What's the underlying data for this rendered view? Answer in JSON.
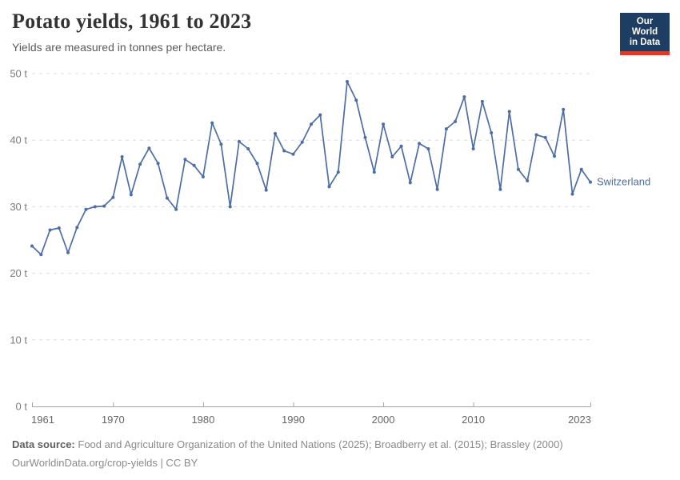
{
  "header": {
    "title": "Potato yields, 1961 to 2023",
    "subtitle": "Yields are measured in tonnes per hectare.",
    "logo": {
      "line1": "Our World",
      "line2": "in Data",
      "bg_color": "#1d3d63",
      "accent_color": "#dc3a2a"
    }
  },
  "chart_data": {
    "type": "line",
    "title": "Potato yields, 1961 to 2023",
    "xlabel": "",
    "ylabel": "tonnes per hectare",
    "ylim": [
      0,
      50
    ],
    "yticks": [
      0,
      10,
      20,
      30,
      40,
      50
    ],
    "ytick_suffix": " t",
    "xticks": [
      1961,
      1970,
      1980,
      1990,
      2000,
      2010,
      2023
    ],
    "grid": "horizontal-dashed",
    "legend_position": "end-of-line",
    "x": [
      1961,
      1962,
      1963,
      1964,
      1965,
      1966,
      1967,
      1968,
      1969,
      1970,
      1971,
      1972,
      1973,
      1974,
      1975,
      1976,
      1977,
      1978,
      1979,
      1980,
      1981,
      1982,
      1983,
      1984,
      1985,
      1986,
      1987,
      1988,
      1989,
      1990,
      1991,
      1992,
      1993,
      1994,
      1995,
      1996,
      1997,
      1998,
      1999,
      2000,
      2001,
      2002,
      2003,
      2004,
      2005,
      2006,
      2007,
      2008,
      2009,
      2010,
      2011,
      2012,
      2013,
      2014,
      2015,
      2016,
      2017,
      2018,
      2019,
      2020,
      2021,
      2022,
      2023
    ],
    "series": [
      {
        "name": "Switzerland",
        "color": "#4C6DA6",
        "values": [
          24.1,
          22.8,
          26.5,
          26.8,
          23.1,
          26.9,
          29.6,
          30.0,
          30.1,
          31.4,
          37.5,
          31.8,
          36.4,
          38.8,
          36.5,
          31.3,
          29.6,
          37.1,
          36.2,
          34.5,
          42.6,
          39.4,
          30.0,
          39.8,
          38.7,
          36.5,
          32.5,
          41.0,
          38.4,
          37.9,
          39.7,
          42.4,
          43.8,
          33.0,
          35.2,
          48.8,
          46.0,
          40.4,
          35.2,
          42.4,
          37.5,
          39.1,
          33.6,
          39.5,
          38.7,
          32.6,
          41.7,
          42.8,
          46.5,
          38.7,
          45.8,
          41.1,
          32.6,
          44.3,
          35.6,
          33.9,
          40.8,
          40.4,
          37.6,
          44.6,
          31.9,
          35.6,
          33.7
        ]
      }
    ]
  },
  "footer": {
    "source_label": "Data source: ",
    "source_text": "Food and Agriculture Organization of the United Nations (2025); Broadberry et al. (2015); Brassley (2000)",
    "license": "OurWorldinData.org/crop-yields | CC BY"
  }
}
